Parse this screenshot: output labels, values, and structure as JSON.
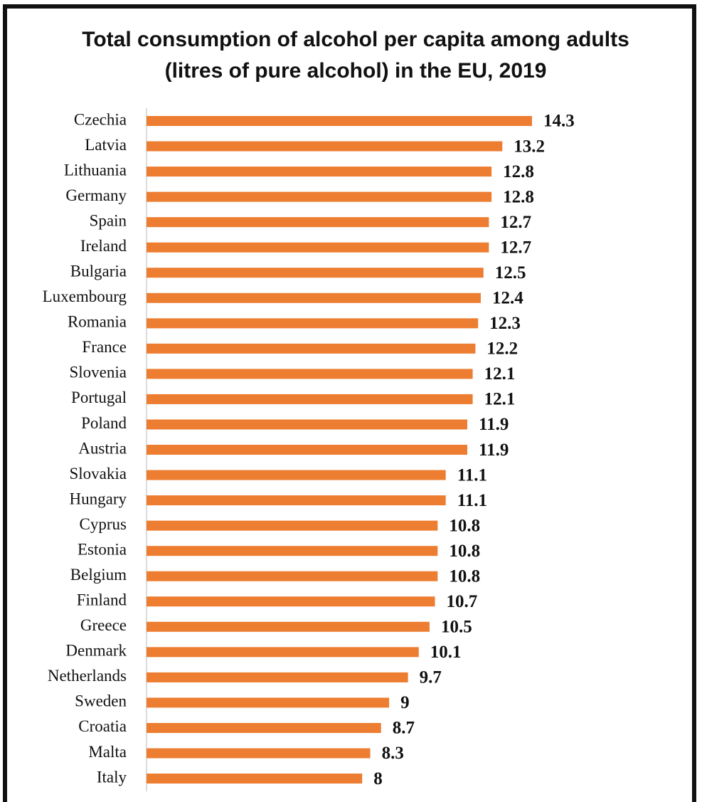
{
  "chart_data": {
    "type": "bar",
    "orientation": "horizontal",
    "title": "Total consumption of alcohol per capita among adults (litres of pure alcohol) in the EU, 2019",
    "categories": [
      "Czechia",
      "Latvia",
      "Lithuania",
      "Germany",
      "Spain",
      "Ireland",
      "Bulgaria",
      "Luxembourg",
      "Romania",
      "France",
      "Slovenia",
      "Portugal",
      "Poland",
      "Austria",
      "Slovakia",
      "Hungary",
      "Cyprus",
      "Estonia",
      "Belgium",
      "Finland",
      "Greece",
      "Denmark",
      "Netherlands",
      "Sweden",
      "Croatia",
      "Malta",
      "Italy"
    ],
    "values": [
      14.3,
      13.2,
      12.8,
      12.8,
      12.7,
      12.7,
      12.5,
      12.4,
      12.3,
      12.2,
      12.1,
      12.1,
      11.9,
      11.9,
      11.1,
      11.1,
      10.8,
      10.8,
      10.8,
      10.7,
      10.5,
      10.1,
      9.7,
      9,
      8.7,
      8.3,
      8
    ],
    "color": "#ed7d31",
    "xlim": [
      0,
      20
    ]
  }
}
